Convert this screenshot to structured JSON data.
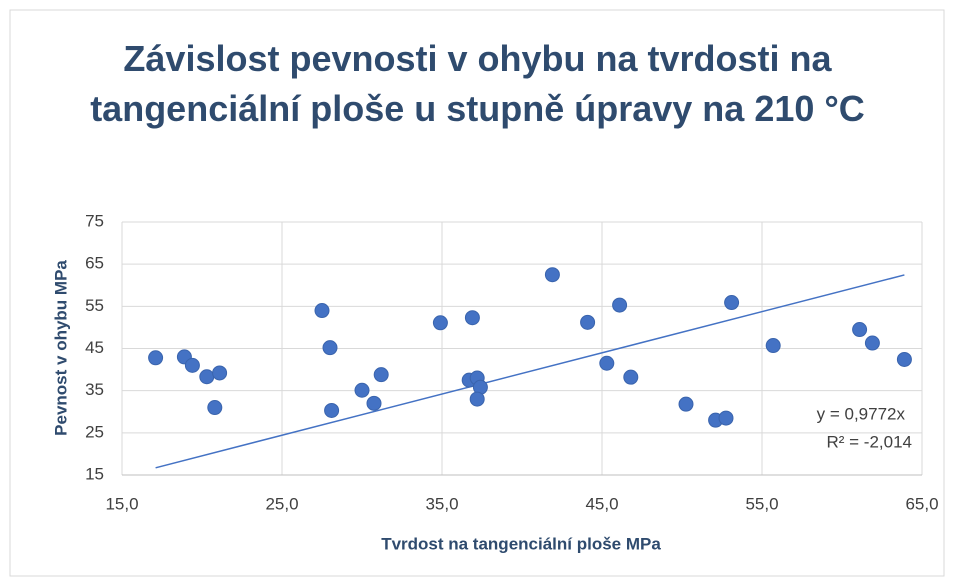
{
  "chart_data": {
    "type": "scatter",
    "title": "Závislost pevnosti v ohybu na tvrdosti na tangenciální ploše u stupně úpravy na 210 °C",
    "x_label": "Tvrdost na tangenciální ploše MPa",
    "y_label": "Pevnost v ohybu MPa",
    "color": "#4472c4",
    "grid": true,
    "x": [
      17.1,
      18.9,
      19.4,
      20.3,
      21.1,
      20.8,
      27.5,
      28.0,
      28.1,
      30.0,
      30.75,
      31.2,
      34.9,
      36.9,
      36.7,
      37.2,
      37.4,
      37.2,
      41.9,
      44.1,
      46.1,
      45.3,
      46.8,
      50.25,
      52.1,
      52.75,
      53.1,
      55.7,
      61.1,
      61.9,
      63.9
    ],
    "values": [
      42.8,
      43.0,
      41.0,
      38.3,
      39.2,
      31.0,
      54.0,
      45.2,
      30.3,
      35.1,
      32.0,
      38.8,
      51.1,
      52.3,
      37.5,
      38.0,
      35.8,
      33.0,
      62.5,
      51.2,
      55.3,
      41.5,
      38.2,
      31.8,
      28.0,
      28.5,
      55.9,
      45.7,
      49.5,
      46.3,
      42.4
    ],
    "xlim": [
      15,
      65
    ],
    "xticks": [
      {
        "value": 15,
        "label": "15,0"
      },
      {
        "value": 25,
        "label": "25,0"
      },
      {
        "value": 35,
        "label": "35,0"
      },
      {
        "value": 45,
        "label": "45,0"
      },
      {
        "value": 55,
        "label": "55,0"
      },
      {
        "value": 65,
        "label": "65,0"
      }
    ],
    "ylim": [
      15,
      75
    ],
    "yticks": [
      15,
      25,
      35,
      45,
      55,
      65,
      75
    ],
    "trendline": {
      "slope": 0.9772,
      "color": "#4472c4",
      "equation": "y = 0,9772x",
      "r2": "R² = -2,014"
    }
  }
}
